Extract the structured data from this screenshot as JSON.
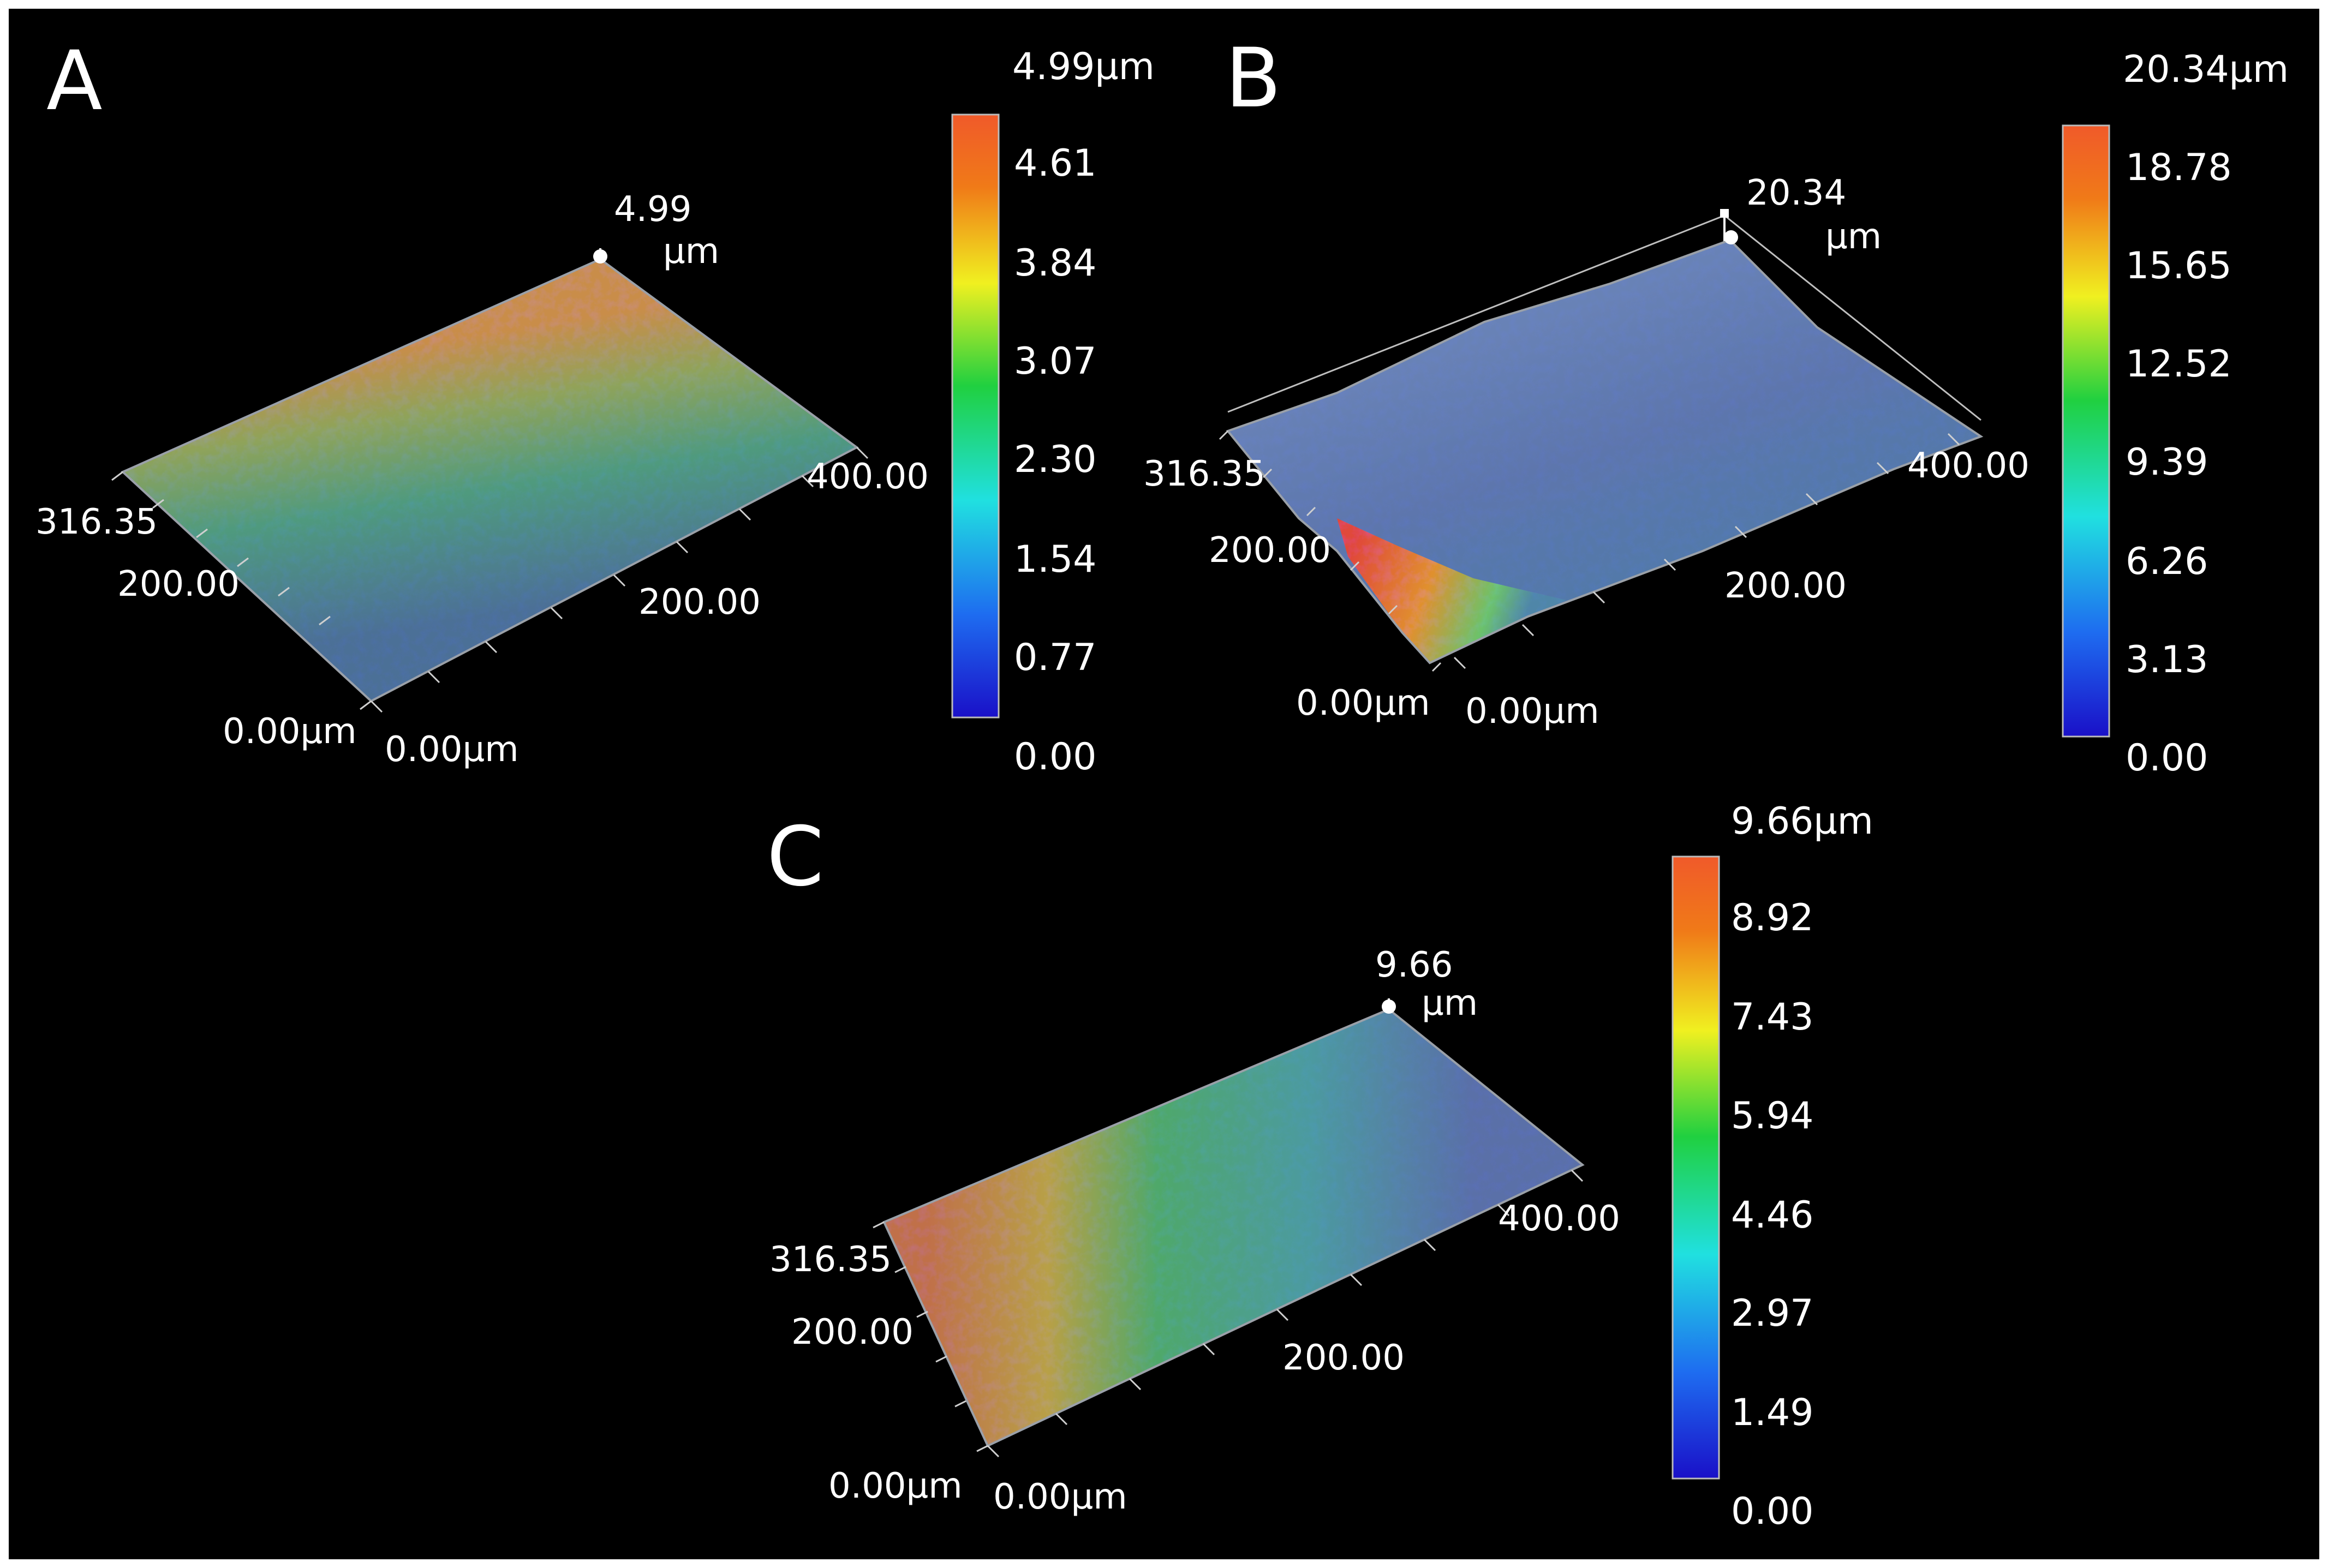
{
  "chart_data": [
    {
      "panel": "A",
      "type": "heatmap",
      "peak_label": "4.99",
      "peak_unit": "µm",
      "x_axis": {
        "ticks": [
          "0.00µm",
          "200.00",
          "400.00"
        ],
        "range": [
          0,
          400
        ]
      },
      "y_axis": {
        "ticks": [
          "0.00µm",
          "200.00",
          "316.35"
        ],
        "range": [
          0,
          316.35
        ]
      },
      "colorbar": {
        "max_label": "4.99µm",
        "range": [
          0,
          4.99
        ],
        "ticks": [
          "4.61",
          "3.84",
          "3.07",
          "2.30",
          "1.54",
          "0.77",
          "0.00"
        ]
      }
    },
    {
      "panel": "B",
      "type": "heatmap",
      "peak_label": "20.34",
      "peak_unit": "µm",
      "x_axis": {
        "ticks": [
          "0.00µm",
          "200.00",
          "400.00"
        ],
        "range": [
          0,
          400
        ]
      },
      "y_axis": {
        "ticks": [
          "0.00µm",
          "200.00",
          "316.35"
        ],
        "range": [
          0,
          316.35
        ]
      },
      "colorbar": {
        "max_label": "20.34µm",
        "range": [
          0,
          20.34
        ],
        "ticks": [
          "18.78",
          "15.65",
          "12.52",
          "9.39",
          "6.26",
          "3.13",
          "0.00"
        ]
      }
    },
    {
      "panel": "C",
      "type": "heatmap",
      "peak_label": "9.66",
      "peak_unit": "µm",
      "x_axis": {
        "ticks": [
          "0.00µm",
          "200.00",
          "400.00"
        ],
        "range": [
          0,
          400
        ]
      },
      "y_axis": {
        "ticks": [
          "0.00µm",
          "200.00",
          "316.35"
        ],
        "range": [
          0,
          316.35
        ]
      },
      "colorbar": {
        "max_label": "9.66µm",
        "range": [
          0,
          9.66
        ],
        "ticks": [
          "8.92",
          "7.43",
          "5.94",
          "4.46",
          "2.97",
          "1.49",
          "0.00"
        ]
      }
    }
  ],
  "colors": {
    "background": "#000000",
    "frame": "#ffffff",
    "colormap": [
      "#1a10c8",
      "#1e6cf0",
      "#20e0e0",
      "#20d040",
      "#f0f020",
      "#f07a18",
      "#f05a2a"
    ]
  }
}
